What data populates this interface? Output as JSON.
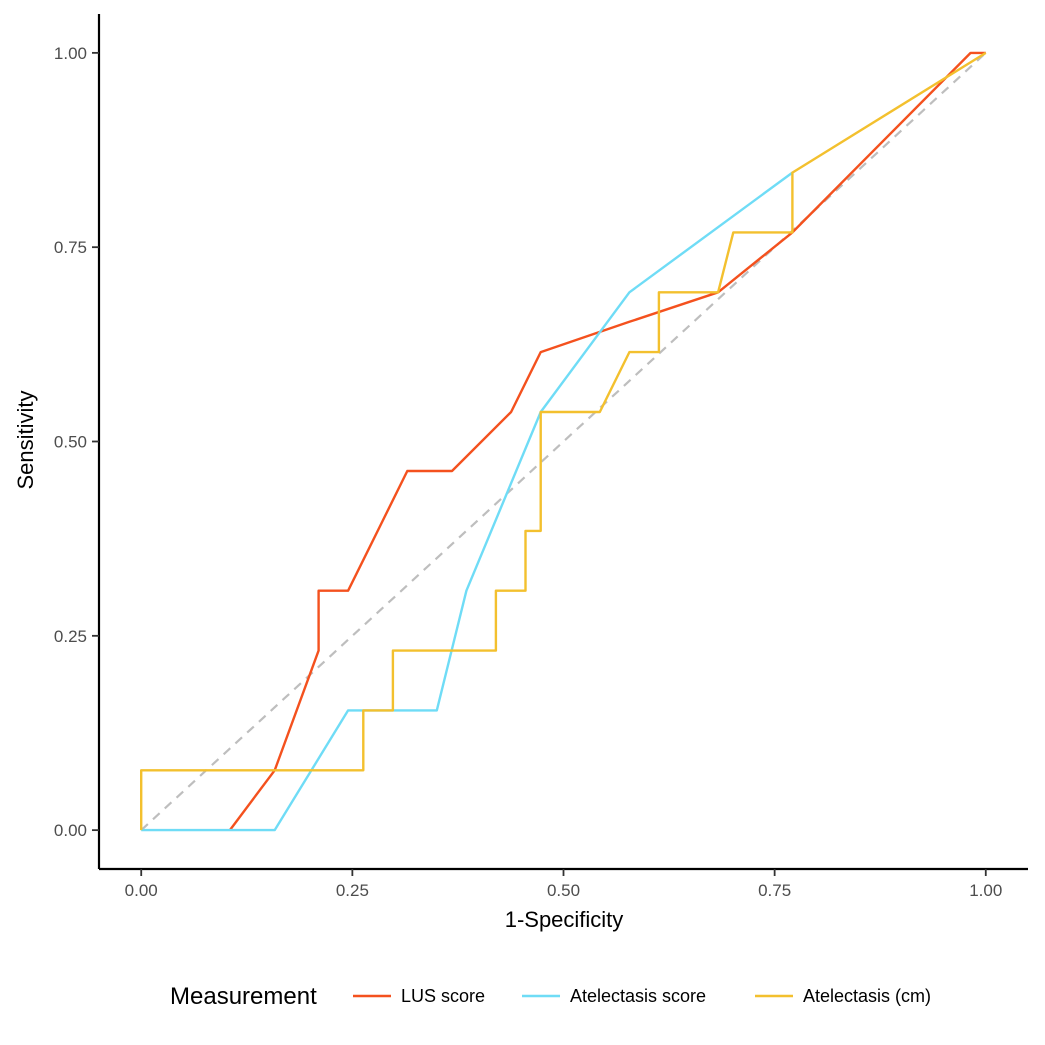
{
  "chart_data": {
    "type": "line",
    "xlabel": "1-Specificity",
    "ylabel": "Sensitivity",
    "xlim": [
      -0.05,
      1.05
    ],
    "ylim": [
      -0.05,
      1.05
    ],
    "x_ticks": [
      "0.00",
      "0.25",
      "0.50",
      "0.75",
      "1.00"
    ],
    "y_ticks": [
      "0.00",
      "0.25",
      "0.50",
      "0.75",
      "1.00"
    ],
    "grid": false,
    "legend": {
      "title": "Measurement",
      "position": "bottom",
      "entries": [
        "LUS score",
        "Atelectasis score",
        "Atelectasis (cm)"
      ]
    },
    "reference_line": {
      "x": [
        0,
        1
      ],
      "y": [
        0,
        1
      ],
      "color": "#bebebe",
      "style": "dashed"
    },
    "series": [
      {
        "name": "LUS score",
        "color": "#f4511e",
        "x": [
          0.105,
          0.158,
          0.21,
          0.21,
          0.245,
          0.315,
          0.368,
          0.438,
          0.473,
          0.578,
          0.683,
          0.771,
          0.982,
          1.0
        ],
        "y": [
          0.0,
          0.077,
          0.231,
          0.308,
          0.308,
          0.462,
          0.462,
          0.538,
          0.615,
          0.654,
          0.692,
          0.769,
          1.0,
          1.0
        ]
      },
      {
        "name": "Atelectasis score",
        "color": "#6fdcf6",
        "x": [
          0.0,
          0.158,
          0.245,
          0.35,
          0.385,
          0.473,
          0.578,
          0.771
        ],
        "y": [
          0.0,
          0.0,
          0.154,
          0.154,
          0.308,
          0.538,
          0.692,
          0.846
        ]
      },
      {
        "name": "Atelectasis (cm)",
        "color": "#f3c02e",
        "x": [
          0.0,
          0.0,
          0.263,
          0.263,
          0.298,
          0.298,
          0.42,
          0.42,
          0.455,
          0.455,
          0.473,
          0.473,
          0.543,
          0.578,
          0.613,
          0.613,
          0.683,
          0.701,
          0.771,
          0.771,
          1.0
        ],
        "y": [
          0.0,
          0.077,
          0.077,
          0.154,
          0.154,
          0.231,
          0.231,
          0.308,
          0.308,
          0.385,
          0.385,
          0.538,
          0.538,
          0.615,
          0.615,
          0.692,
          0.692,
          0.769,
          0.769,
          0.846,
          1.0
        ]
      }
    ]
  }
}
